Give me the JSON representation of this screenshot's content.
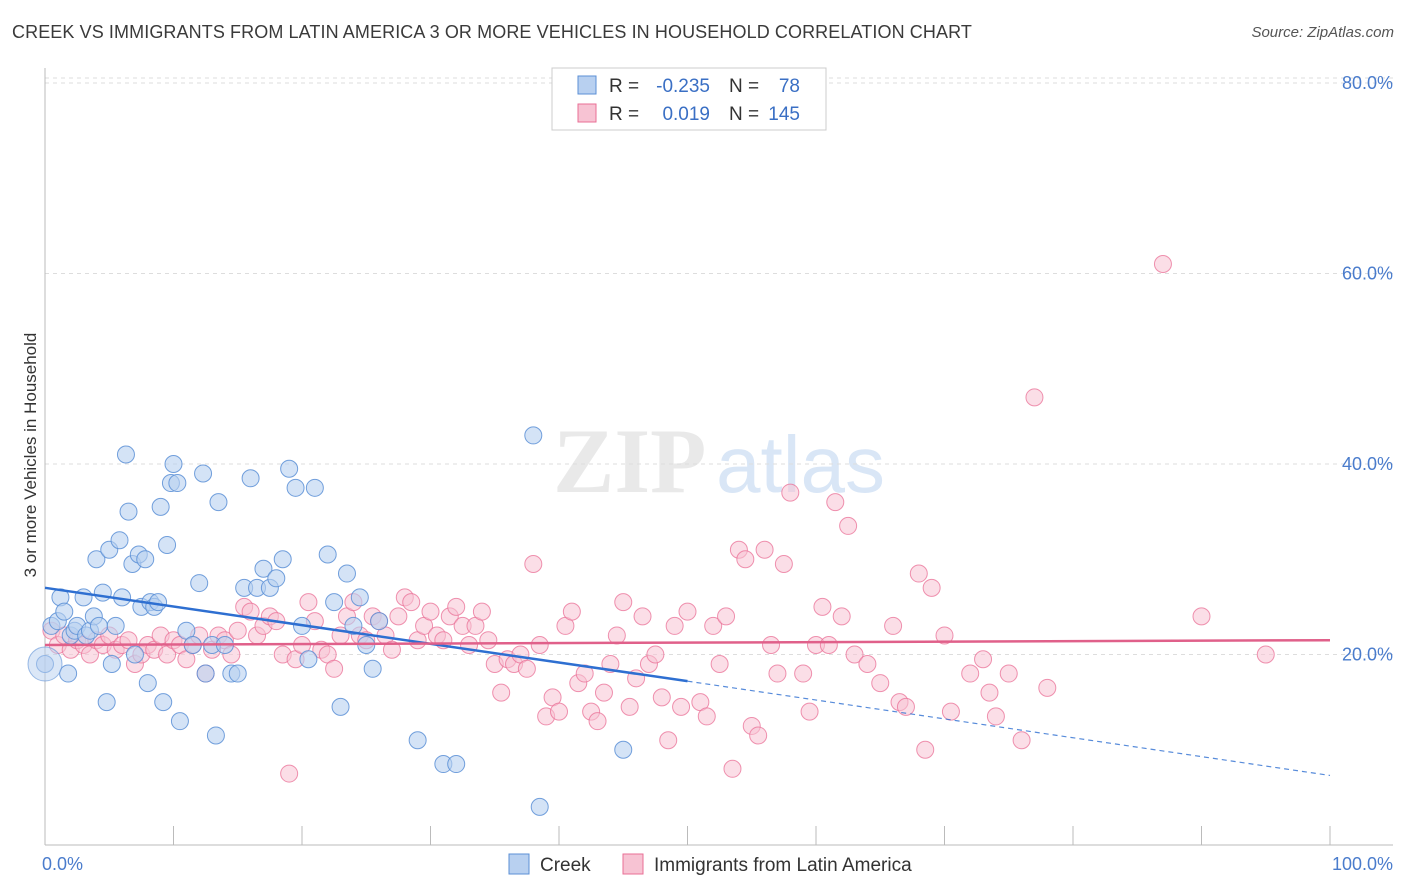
{
  "header": {
    "title": "CREEK VS IMMIGRANTS FROM LATIN AMERICA 3 OR MORE VEHICLES IN HOUSEHOLD CORRELATION CHART",
    "source": "Source: ZipAtlas.com"
  },
  "watermark": {
    "zip": "ZIP",
    "atlas": "atlas"
  },
  "colors": {
    "creek": "#5b8fd6",
    "creek_fill": "#b8d0f0",
    "latin": "#e96f96",
    "latin_fill": "#f7c3d3",
    "tick": "#4a7ccc",
    "grid": "#dddddd"
  },
  "stats": {
    "creek": {
      "r_label": "R =",
      "r_value": "-0.235",
      "n_label": "N =",
      "n_value": "78"
    },
    "latin": {
      "r_label": "R =",
      "r_value": "0.019",
      "n_label": "N =",
      "n_value": "145"
    }
  },
  "chart_data": {
    "type": "scatter",
    "title": "CREEK VS IMMIGRANTS FROM LATIN AMERICA 3 OR MORE VEHICLES IN HOUSEHOLD CORRELATION CHART",
    "xlabel": "",
    "ylabel": "3 or more Vehicles in Household",
    "xlim": [
      0,
      100
    ],
    "ylim": [
      0,
      85
    ],
    "x_tick_labels": [
      "0.0%",
      "100.0%"
    ],
    "y_ticks": [
      20,
      40,
      60,
      80
    ],
    "y_tick_labels": [
      "20.0%",
      "40.0%",
      "60.0%",
      "80.0%"
    ],
    "grid": "horizontal dashed",
    "legend_position": "bottom-center",
    "series": [
      {
        "name": "Creek",
        "trend": {
          "x0": 0,
          "y0": 27.0,
          "x1": 50,
          "y1": 17.2,
          "dashed_to_x": 100,
          "dashed_to_y": 7.3
        },
        "points": [
          [
            0,
            19
          ],
          [
            0.5,
            23
          ],
          [
            1,
            23.5
          ],
          [
            1.2,
            26
          ],
          [
            1.5,
            24.5
          ],
          [
            1.8,
            18
          ],
          [
            2,
            22
          ],
          [
            2.3,
            22.5
          ],
          [
            2.5,
            23
          ],
          [
            3,
            26
          ],
          [
            3.2,
            22
          ],
          [
            3.5,
            22.5
          ],
          [
            3.8,
            24
          ],
          [
            4,
            30
          ],
          [
            4.2,
            23
          ],
          [
            4.5,
            26.5
          ],
          [
            4.8,
            15
          ],
          [
            5,
            31
          ],
          [
            5.2,
            19
          ],
          [
            5.5,
            23
          ],
          [
            5.8,
            32
          ],
          [
            6,
            26
          ],
          [
            6.3,
            41
          ],
          [
            6.5,
            35
          ],
          [
            6.8,
            29.5
          ],
          [
            7,
            20
          ],
          [
            7.3,
            30.5
          ],
          [
            7.5,
            25
          ],
          [
            7.8,
            30
          ],
          [
            8,
            17
          ],
          [
            8.2,
            25.5
          ],
          [
            8.5,
            25
          ],
          [
            8.8,
            25.5
          ],
          [
            9,
            35.5
          ],
          [
            9.2,
            15
          ],
          [
            9.5,
            31.5
          ],
          [
            9.8,
            38
          ],
          [
            10,
            40
          ],
          [
            10.3,
            38
          ],
          [
            10.5,
            13
          ],
          [
            11,
            22.5
          ],
          [
            11.5,
            21
          ],
          [
            12,
            27.5
          ],
          [
            12.3,
            39
          ],
          [
            12.5,
            18
          ],
          [
            13,
            21
          ],
          [
            13.3,
            11.5
          ],
          [
            13.5,
            36
          ],
          [
            14,
            21
          ],
          [
            14.5,
            18
          ],
          [
            15,
            18
          ],
          [
            15.5,
            27
          ],
          [
            16,
            38.5
          ],
          [
            16.5,
            27
          ],
          [
            17,
            29
          ],
          [
            17.5,
            27
          ],
          [
            18,
            28
          ],
          [
            18.5,
            30
          ],
          [
            19,
            39.5
          ],
          [
            19.5,
            37.5
          ],
          [
            20,
            23
          ],
          [
            20.5,
            19.5
          ],
          [
            21,
            37.5
          ],
          [
            22,
            30.5
          ],
          [
            22.5,
            25.5
          ],
          [
            23,
            14.5
          ],
          [
            23.5,
            28.5
          ],
          [
            24,
            23
          ],
          [
            24.5,
            26
          ],
          [
            25,
            21
          ],
          [
            25.5,
            18.5
          ],
          [
            26,
            23.5
          ],
          [
            29,
            11
          ],
          [
            31,
            8.5
          ],
          [
            32,
            8.5
          ],
          [
            38,
            43
          ],
          [
            38.5,
            4
          ],
          [
            45,
            10
          ]
        ]
      },
      {
        "name": "Immigrants from Latin America",
        "trend": {
          "x0": 0,
          "y0": 21.0,
          "x1": 100,
          "y1": 21.5
        },
        "points": [
          [
            0.5,
            22.5
          ],
          [
            1,
            21
          ],
          [
            1.5,
            22
          ],
          [
            2,
            20.5
          ],
          [
            2.5,
            21.5
          ],
          [
            3,
            21
          ],
          [
            3.5,
            20
          ],
          [
            4,
            21.5
          ],
          [
            4.5,
            21
          ],
          [
            5,
            22
          ],
          [
            5.5,
            20.5
          ],
          [
            6,
            21
          ],
          [
            6.5,
            21.5
          ],
          [
            7,
            19
          ],
          [
            7.5,
            20
          ],
          [
            8,
            21
          ],
          [
            8.5,
            20.5
          ],
          [
            9,
            22
          ],
          [
            9.5,
            20
          ],
          [
            10,
            21.5
          ],
          [
            10.5,
            21
          ],
          [
            11,
            19.5
          ],
          [
            11.5,
            21
          ],
          [
            12,
            22
          ],
          [
            12.5,
            18
          ],
          [
            13,
            20.5
          ],
          [
            13.5,
            22
          ],
          [
            14,
            21.5
          ],
          [
            14.5,
            20
          ],
          [
            15,
            22.5
          ],
          [
            15.5,
            25
          ],
          [
            16,
            24.5
          ],
          [
            16.5,
            22
          ],
          [
            17,
            23
          ],
          [
            17.5,
            24
          ],
          [
            18,
            23.5
          ],
          [
            18.5,
            20
          ],
          [
            19,
            7.5
          ],
          [
            19.5,
            19.5
          ],
          [
            20,
            21
          ],
          [
            20.5,
            25.5
          ],
          [
            21,
            23.5
          ],
          [
            21.5,
            20.5
          ],
          [
            22,
            20
          ],
          [
            22.5,
            18.5
          ],
          [
            23,
            22
          ],
          [
            23.5,
            24
          ],
          [
            24,
            25.5
          ],
          [
            24.5,
            22
          ],
          [
            25,
            21.5
          ],
          [
            25.5,
            24
          ],
          [
            26,
            23.5
          ],
          [
            26.5,
            22
          ],
          [
            27,
            20.5
          ],
          [
            27.5,
            24
          ],
          [
            28,
            26
          ],
          [
            28.5,
            25.5
          ],
          [
            29,
            21.5
          ],
          [
            29.5,
            23
          ],
          [
            30,
            24.5
          ],
          [
            30.5,
            22
          ],
          [
            31,
            21.5
          ],
          [
            31.5,
            24
          ],
          [
            32,
            25
          ],
          [
            32.5,
            23
          ],
          [
            33,
            21
          ],
          [
            33.5,
            23
          ],
          [
            34,
            24.5
          ],
          [
            34.5,
            21.5
          ],
          [
            35,
            19
          ],
          [
            35.5,
            16
          ],
          [
            36,
            19.5
          ],
          [
            36.5,
            19
          ],
          [
            37,
            20
          ],
          [
            37.5,
            18.5
          ],
          [
            38,
            29.5
          ],
          [
            38.5,
            21
          ],
          [
            39,
            13.5
          ],
          [
            39.5,
            15.5
          ],
          [
            40,
            14
          ],
          [
            40.5,
            23
          ],
          [
            41,
            24.5
          ],
          [
            41.5,
            17
          ],
          [
            42,
            18
          ],
          [
            42.5,
            14
          ],
          [
            43,
            13
          ],
          [
            43.5,
            16
          ],
          [
            44,
            19
          ],
          [
            44.5,
            22
          ],
          [
            45,
            25.5
          ],
          [
            45.5,
            14.5
          ],
          [
            46,
            17.5
          ],
          [
            46.5,
            24
          ],
          [
            47,
            19
          ],
          [
            47.5,
            20
          ],
          [
            48,
            15.5
          ],
          [
            48.5,
            11
          ],
          [
            49,
            23
          ],
          [
            49.5,
            14.5
          ],
          [
            50,
            24.5
          ],
          [
            51,
            15
          ],
          [
            51.5,
            13.5
          ],
          [
            52,
            23
          ],
          [
            52.5,
            19
          ],
          [
            53,
            24
          ],
          [
            53.5,
            8
          ],
          [
            54,
            31
          ],
          [
            54.5,
            30
          ],
          [
            55,
            12.5
          ],
          [
            55.5,
            11.5
          ],
          [
            56,
            31
          ],
          [
            56.5,
            21
          ],
          [
            57,
            18
          ],
          [
            57.5,
            29.5
          ],
          [
            58,
            37
          ],
          [
            59,
            18
          ],
          [
            59.5,
            14
          ],
          [
            60,
            21
          ],
          [
            60.5,
            25
          ],
          [
            61,
            21
          ],
          [
            61.5,
            36
          ],
          [
            62,
            24
          ],
          [
            62.5,
            33.5
          ],
          [
            63,
            20
          ],
          [
            64,
            19
          ],
          [
            65,
            17
          ],
          [
            66,
            23
          ],
          [
            66.5,
            15
          ],
          [
            67,
            14.5
          ],
          [
            68,
            28.5
          ],
          [
            68.5,
            10
          ],
          [
            69,
            27
          ],
          [
            70,
            22
          ],
          [
            70.5,
            14
          ],
          [
            72,
            18
          ],
          [
            73,
            19.5
          ],
          [
            73.5,
            16
          ],
          [
            74,
            13.5
          ],
          [
            75,
            18
          ],
          [
            76,
            11
          ],
          [
            77,
            47
          ],
          [
            78,
            16.5
          ],
          [
            87,
            61
          ],
          [
            90,
            24
          ],
          [
            95,
            20
          ]
        ]
      }
    ]
  },
  "legend": {
    "items": [
      {
        "label": "Creek"
      },
      {
        "label": "Immigrants from Latin America"
      }
    ]
  }
}
